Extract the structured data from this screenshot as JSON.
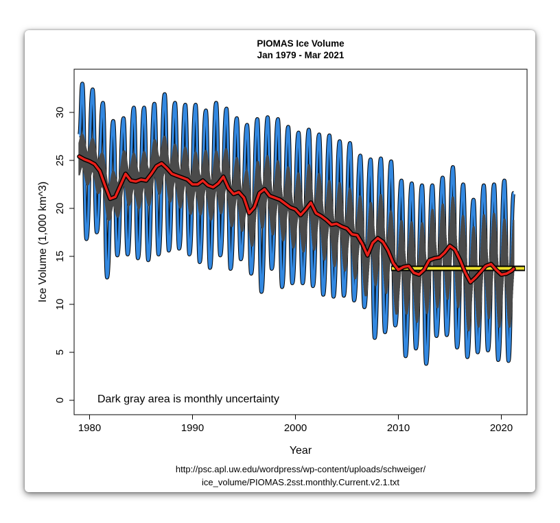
{
  "chart_data": {
    "type": "line",
    "title": "PIOMAS Ice Volume",
    "subtitle": "Jan 1979 - Mar 2021",
    "xlabel": "Year",
    "ylabel": "Ice Volume (1,000 km^3)",
    "xlim": [
      1978.5,
      2022.5
    ],
    "ylim": [
      -1.5,
      34.5
    ],
    "xticks": [
      1980,
      1990,
      2000,
      2010,
      2020
    ],
    "yticks": [
      0,
      5,
      10,
      15,
      20,
      25,
      30
    ],
    "grid": false,
    "annotation": "Dark gray area is monthly uncertainty",
    "source": [
      "http://psc.apl.uw.edu/wordpress/wp-content/uploads/schweiger/",
      "ice_volume/PIOMAS.2sst.monthly.Current.v2.1.txt"
    ],
    "colors": {
      "monthly": "#3388e0",
      "outline": "#000000",
      "uncertainty": "#4a4a4a",
      "smoothed": "#e8201a",
      "baseline": "#f0e32c"
    },
    "series": [
      {
        "kind": "monthly",
        "seasonal_peaks_year": [
          1979.3,
          1980.3,
          1981.3,
          1982.3,
          1983.3,
          1984.3,
          1985.3,
          1986.3,
          1987.3,
          1988.3,
          1989.3,
          1990.3,
          1991.3,
          1992.3,
          1993.3,
          1994.3,
          1995.3,
          1996.3,
          1997.3,
          1998.3,
          1999.3,
          2000.3,
          2001.3,
          2002.3,
          2003.3,
          2004.3,
          2005.3,
          2006.3,
          2007.3,
          2008.3,
          2009.3,
          2010.3,
          2011.3,
          2012.3,
          2013.3,
          2014.3,
          2015.3,
          2016.3,
          2017.3,
          2018.3,
          2019.3,
          2020.3
        ],
        "seasonal_peaks": [
          33.0,
          32.4,
          31.0,
          29.1,
          29.4,
          30.5,
          30.5,
          30.9,
          31.9,
          31.0,
          30.8,
          30.8,
          30.2,
          31.0,
          30.4,
          29.4,
          28.7,
          29.3,
          29.5,
          29.3,
          28.5,
          27.9,
          28.2,
          27.7,
          27.6,
          27.0,
          26.8,
          25.5,
          25.1,
          25.2,
          24.9,
          22.9,
          22.6,
          22.4,
          22.4,
          23.2,
          24.3,
          22.5,
          20.9,
          22.4,
          22.5,
          22.9
        ],
        "seasonal_troughs_year": [
          1979.7,
          1980.7,
          1981.7,
          1982.7,
          1983.7,
          1984.7,
          1985.7,
          1986.7,
          1987.7,
          1988.7,
          1989.7,
          1990.7,
          1991.7,
          1992.7,
          1993.7,
          1994.7,
          1995.7,
          1996.7,
          1997.7,
          1998.7,
          1999.7,
          2000.7,
          2001.7,
          2002.7,
          2003.7,
          2004.7,
          2005.7,
          2006.7,
          2007.7,
          2008.7,
          2009.7,
          2010.7,
          2011.7,
          2012.7,
          2013.7,
          2014.7,
          2015.7,
          2016.7,
          2017.7,
          2018.7,
          2019.7,
          2020.7
        ],
        "seasonal_troughs": [
          16.8,
          17.5,
          12.8,
          15.1,
          15.2,
          14.8,
          14.6,
          15.2,
          15.6,
          15.8,
          15.2,
          14.4,
          13.8,
          15.1,
          13.7,
          14.7,
          13.2,
          11.3,
          13.7,
          11.8,
          12.2,
          12.2,
          11.9,
          11.0,
          10.8,
          10.9,
          10.4,
          9.7,
          6.5,
          7.1,
          7.8,
          4.6,
          5.4,
          3.8,
          6.7,
          6.8,
          5.5,
          4.5,
          5.0,
          5.2,
          4.2,
          4.1
        ],
        "end": {
          "x": 2021.2,
          "y": 21.6
        }
      },
      {
        "kind": "smoothed",
        "x": [
          1979,
          1979.5,
          1980,
          1980.5,
          1981,
          1981.5,
          1982,
          1982.5,
          1983,
          1983.5,
          1984,
          1984.5,
          1985,
          1985.5,
          1986,
          1986.5,
          1987,
          1987.5,
          1988,
          1988.5,
          1989,
          1989.5,
          1990,
          1990.5,
          1991,
          1991.5,
          1992,
          1992.5,
          1993,
          1993.5,
          1994,
          1994.5,
          1995,
          1995.5,
          1996,
          1996.5,
          1997,
          1997.5,
          1998,
          1998.5,
          1999,
          1999.5,
          2000,
          2000.5,
          2001,
          2001.5,
          2002,
          2002.5,
          2003,
          2003.5,
          2004,
          2004.5,
          2005,
          2005.5,
          2006,
          2006.5,
          2007,
          2007.5,
          2008,
          2008.5,
          2009,
          2009.5,
          2010,
          2010.5,
          2011,
          2011.5,
          2012,
          2012.5,
          2013,
          2013.5,
          2014,
          2014.5,
          2015,
          2015.5,
          2016,
          2016.5,
          2017,
          2017.5,
          2018,
          2018.5,
          2019,
          2019.5,
          2020,
          2020.5,
          2021,
          2021.2
        ],
        "y": [
          25.4,
          25.1,
          24.9,
          24.6,
          23.9,
          22.4,
          21.0,
          21.2,
          22.4,
          23.6,
          22.9,
          22.8,
          23.0,
          22.9,
          23.6,
          24.4,
          24.7,
          24.2,
          23.6,
          23.4,
          23.2,
          23.0,
          22.5,
          22.5,
          22.9,
          22.4,
          22.2,
          22.6,
          23.3,
          22.1,
          21.5,
          21.7,
          21.1,
          19.5,
          20.1,
          21.6,
          22.0,
          21.3,
          21.1,
          20.9,
          20.5,
          20.1,
          19.9,
          19.3,
          19.9,
          20.6,
          19.5,
          19.2,
          18.8,
          18.3,
          18.4,
          18.1,
          17.9,
          17.3,
          17.2,
          16.3,
          15.1,
          16.4,
          16.9,
          16.5,
          15.6,
          14.3,
          13.6,
          13.9,
          14.0,
          13.3,
          13.1,
          13.6,
          14.6,
          14.8,
          14.9,
          15.4,
          16.1,
          15.7,
          14.6,
          13.3,
          12.3,
          12.8,
          13.4,
          14.0,
          14.2,
          13.6,
          13.1,
          13.2,
          13.5,
          13.7
        ]
      },
      {
        "kind": "baseline",
        "x": [
          2009.3,
          2022.3
        ],
        "y": [
          13.75,
          13.75
        ]
      }
    ]
  }
}
